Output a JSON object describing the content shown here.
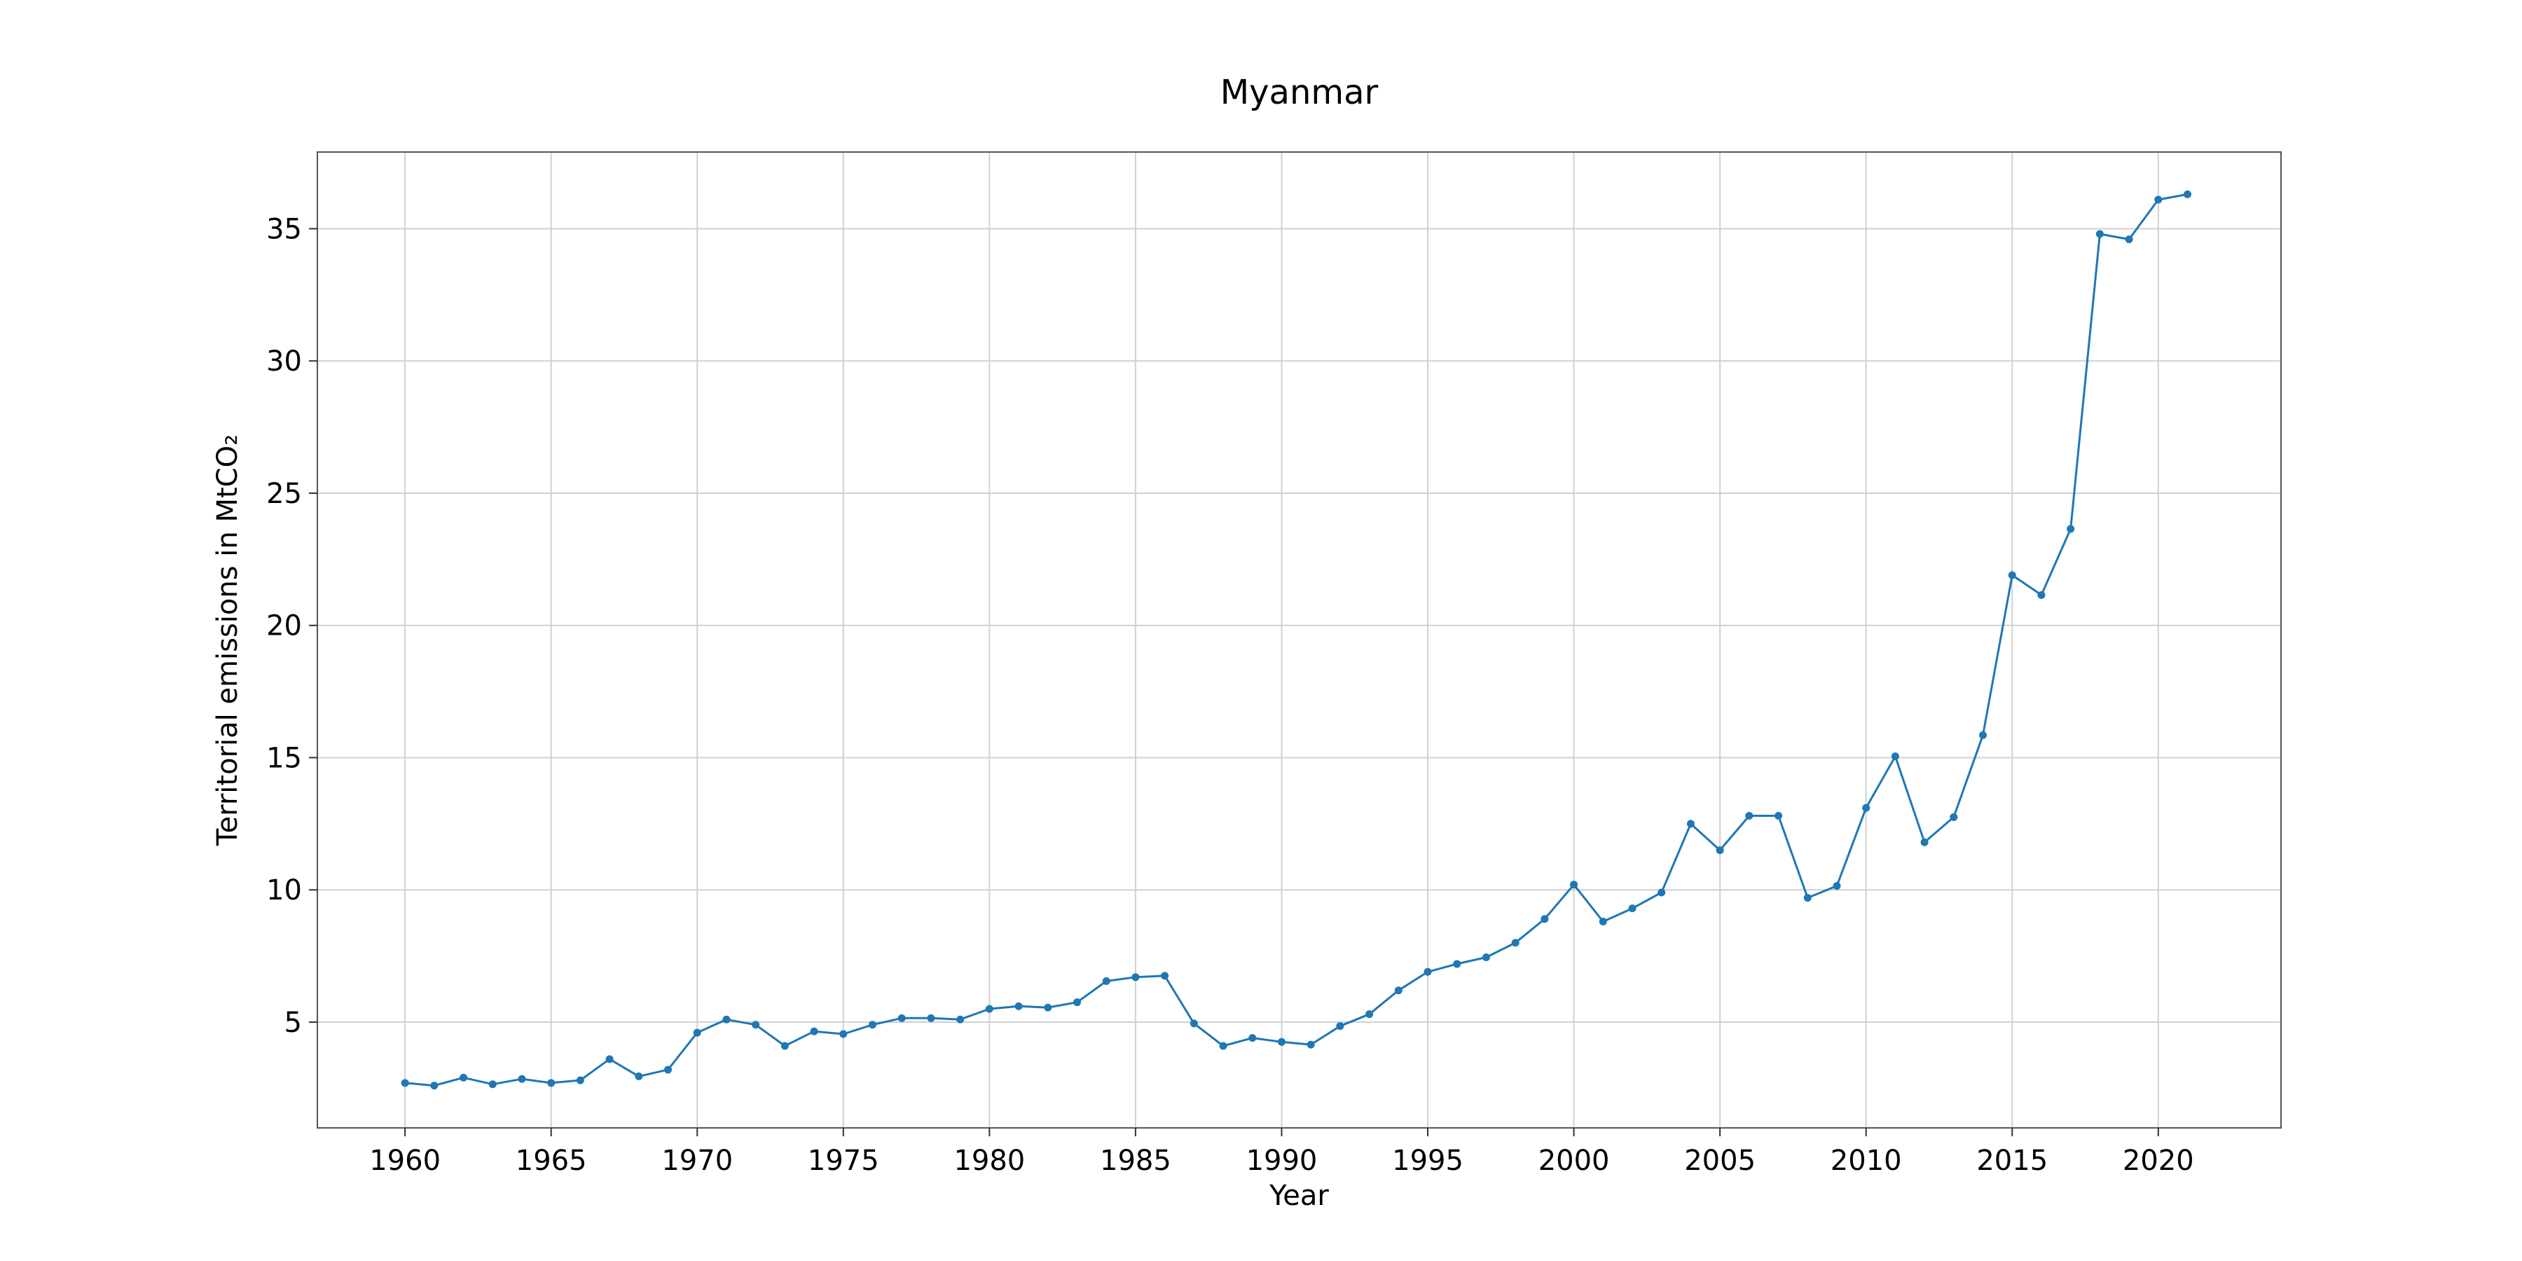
{
  "chart_data": {
    "type": "line",
    "title": "Myanmar",
    "xlabel": "Year",
    "ylabel": "Territorial emissions in MtCO₂",
    "xlim": [
      1957,
      2024.2
    ],
    "ylim": [
      1.0,
      37.9
    ],
    "xticks": [
      1960,
      1965,
      1970,
      1975,
      1980,
      1985,
      1990,
      1995,
      2000,
      2005,
      2010,
      2015,
      2020
    ],
    "yticks": [
      5,
      10,
      15,
      20,
      25,
      30,
      35
    ],
    "grid": true,
    "color": "#1f77b4",
    "marker": "circle",
    "x": [
      1960,
      1961,
      1962,
      1963,
      1964,
      1965,
      1966,
      1967,
      1968,
      1969,
      1970,
      1971,
      1972,
      1973,
      1974,
      1975,
      1976,
      1977,
      1978,
      1979,
      1980,
      1981,
      1982,
      1983,
      1984,
      1985,
      1986,
      1987,
      1988,
      1989,
      1990,
      1991,
      1992,
      1993,
      1994,
      1995,
      1996,
      1997,
      1998,
      1999,
      2000,
      2001,
      2002,
      2003,
      2004,
      2005,
      2006,
      2007,
      2008,
      2009,
      2010,
      2011,
      2012,
      2013,
      2014,
      2015,
      2016,
      2017,
      2018,
      2019,
      2020,
      2021
    ],
    "y": [
      2.7,
      2.6,
      2.9,
      2.65,
      2.85,
      2.7,
      2.8,
      3.6,
      2.95,
      3.2,
      4.6,
      5.1,
      4.9,
      4.1,
      4.65,
      4.55,
      4.9,
      5.15,
      5.15,
      5.1,
      5.5,
      5.6,
      5.55,
      5.75,
      6.55,
      6.7,
      6.75,
      4.95,
      4.1,
      4.4,
      4.25,
      4.15,
      4.85,
      5.3,
      6.2,
      6.9,
      7.2,
      7.45,
      8.0,
      8.9,
      10.2,
      8.8,
      9.3,
      9.9,
      12.5,
      11.5,
      12.8,
      12.8,
      9.7,
      10.15,
      13.1,
      15.05,
      11.8,
      12.75,
      15.85,
      21.9,
      21.15,
      23.65,
      34.8,
      34.6,
      36.1,
      36.3
    ]
  }
}
